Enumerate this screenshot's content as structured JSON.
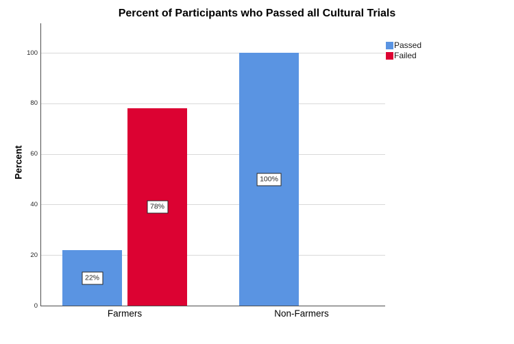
{
  "chart_data": {
    "type": "bar",
    "title": "Percent of Participants who Passed all Cultural Trials",
    "ylabel": "Percent",
    "xlabel": "",
    "categories": [
      "Farmers",
      "Non-Farmers"
    ],
    "series": [
      {
        "name": "Passed",
        "color": "#5A94E2",
        "values": [
          22,
          100
        ],
        "data_labels": [
          "22%",
          "100%"
        ]
      },
      {
        "name": "Failed",
        "color": "#DC0232",
        "values": [
          78,
          null
        ],
        "data_labels": [
          "78%",
          null
        ]
      }
    ],
    "yaxis": {
      "ticks": [
        0,
        20,
        40,
        60,
        80,
        100
      ],
      "range": [
        0,
        100
      ],
      "grid": true
    },
    "legend": {
      "position": "top-right",
      "entries": [
        "Passed",
        "Failed"
      ]
    },
    "value_label_style": "boxed-inside-bar",
    "colors": {
      "passed": "#5A94E2",
      "failed": "#DC0232",
      "gridline": "#d9d9d9",
      "axis": "#4c4c4c"
    }
  }
}
